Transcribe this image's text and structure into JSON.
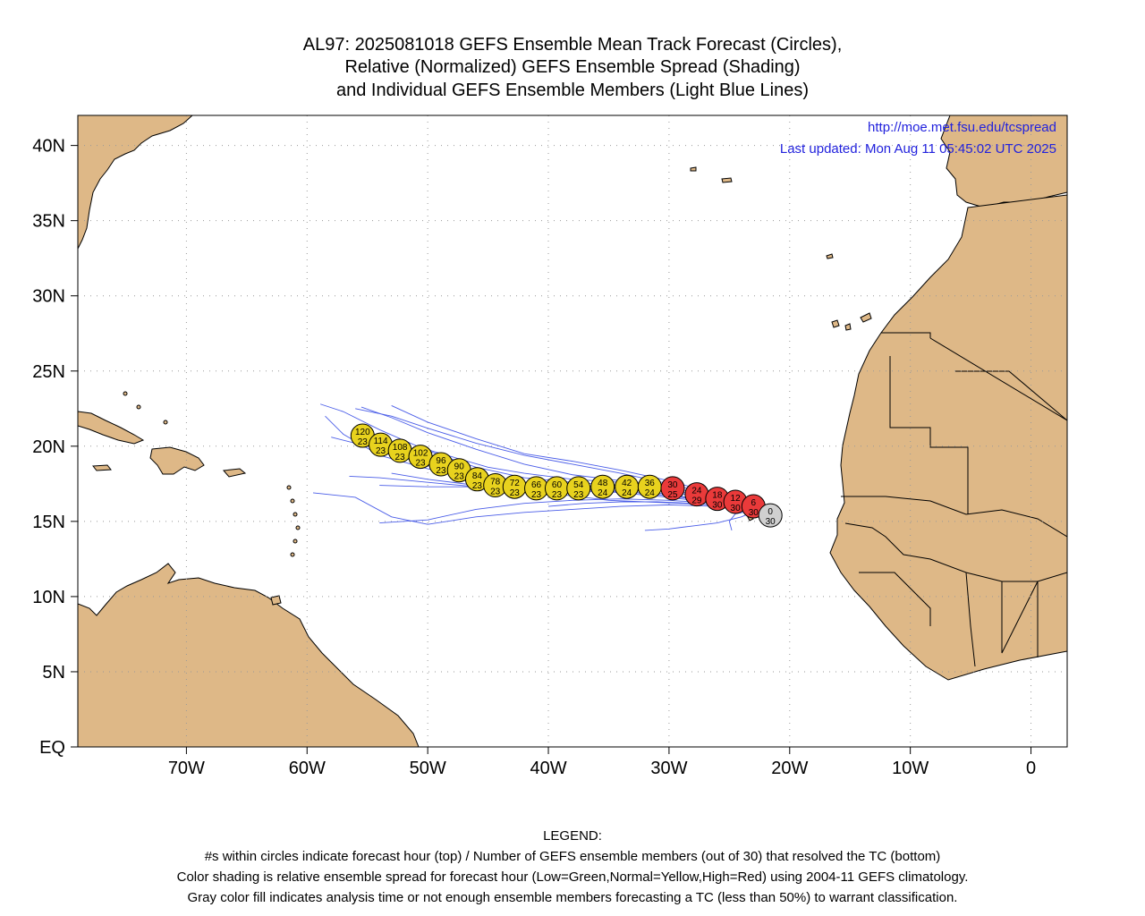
{
  "title": {
    "line1": "AL97: 2025081018 GEFS Ensemble Mean Track Forecast (Circles),",
    "line2": "Relative (Normalized) GEFS Ensemble Spread (Shading)",
    "line3": "and Individual GEFS Ensemble Members (Light Blue Lines)"
  },
  "credit": {
    "url": "http://moe.met.fsu.edu/tcspread",
    "updated": "Last updated: Mon Aug 11 05:45:02 UTC 2025"
  },
  "map": {
    "lon_range": [
      -79,
      3
    ],
    "lat_range": [
      0,
      42
    ],
    "land_color": "#deb887",
    "grid": true,
    "lat_labels": [
      "40N",
      "35N",
      "30N",
      "25N",
      "20N",
      "15N",
      "10N",
      "5N",
      "EQ"
    ],
    "lat_values": [
      40,
      35,
      30,
      25,
      20,
      15,
      10,
      5,
      0
    ],
    "lon_labels": [
      "70W",
      "60W",
      "50W",
      "40W",
      "30W",
      "20W",
      "10W",
      "0"
    ],
    "lon_values": [
      -70,
      -60,
      -50,
      -40,
      -30,
      -20,
      -10,
      0
    ]
  },
  "spread_colors": {
    "yellow": "#e8d21e",
    "red": "#ea3a3a",
    "gray": "#d0d0d0",
    "member_line": "#4a5de8"
  },
  "forecast_points": [
    {
      "hour": "0",
      "members": "30",
      "lon": -21.6,
      "lat": 15.4,
      "color": "gray"
    },
    {
      "hour": "6",
      "members": "30",
      "lon": -23.0,
      "lat": 16.0,
      "color": "red"
    },
    {
      "hour": "12",
      "members": "30",
      "lon": -24.5,
      "lat": 16.3,
      "color": "red"
    },
    {
      "hour": "18",
      "members": "30",
      "lon": -26.0,
      "lat": 16.5,
      "color": "red"
    },
    {
      "hour": "24",
      "members": "29",
      "lon": -27.7,
      "lat": 16.8,
      "color": "red"
    },
    {
      "hour": "30",
      "members": "25",
      "lon": -29.7,
      "lat": 17.2,
      "color": "red"
    },
    {
      "hour": "36",
      "members": "24",
      "lon": -31.6,
      "lat": 17.3,
      "color": "yellow"
    },
    {
      "hour": "42",
      "members": "24",
      "lon": -33.5,
      "lat": 17.3,
      "color": "yellow"
    },
    {
      "hour": "48",
      "members": "24",
      "lon": -35.5,
      "lat": 17.3,
      "color": "yellow"
    },
    {
      "hour": "54",
      "members": "23",
      "lon": -37.5,
      "lat": 17.2,
      "color": "yellow"
    },
    {
      "hour": "60",
      "members": "23",
      "lon": -39.3,
      "lat": 17.2,
      "color": "yellow"
    },
    {
      "hour": "66",
      "members": "23",
      "lon": -41.0,
      "lat": 17.2,
      "color": "yellow"
    },
    {
      "hour": "72",
      "members": "23",
      "lon": -42.8,
      "lat": 17.3,
      "color": "yellow"
    },
    {
      "hour": "78",
      "members": "23",
      "lon": -44.4,
      "lat": 17.4,
      "color": "yellow"
    },
    {
      "hour": "84",
      "members": "23",
      "lon": -45.9,
      "lat": 17.8,
      "color": "yellow"
    },
    {
      "hour": "90",
      "members": "23",
      "lon": -47.4,
      "lat": 18.4,
      "color": "yellow"
    },
    {
      "hour": "96",
      "members": "23",
      "lon": -48.9,
      "lat": 18.8,
      "color": "yellow"
    },
    {
      "hour": "102",
      "members": "23",
      "lon": -50.6,
      "lat": 19.3,
      "color": "yellow"
    },
    {
      "hour": "108",
      "members": "23",
      "lon": -52.3,
      "lat": 19.7,
      "color": "yellow"
    },
    {
      "hour": "114",
      "members": "23",
      "lon": -53.9,
      "lat": 20.1,
      "color": "yellow"
    },
    {
      "hour": "120",
      "members": "23",
      "lon": -55.4,
      "lat": 20.7,
      "color": "yellow"
    }
  ],
  "member_tracks": [
    [
      [
        -22.6,
        15.8
      ],
      [
        -26,
        16.4
      ],
      [
        -30,
        17.0
      ],
      [
        -34,
        17.4
      ],
      [
        -38,
        17.6
      ],
      [
        -42,
        17.9
      ],
      [
        -46,
        18.6
      ],
      [
        -50,
        19.7
      ],
      [
        -54,
        21.1
      ],
      [
        -57,
        22.3
      ],
      [
        -58.9,
        22.8
      ]
    ],
    [
      [
        -22.6,
        15.8
      ],
      [
        -26,
        16.6
      ],
      [
        -30,
        17.3
      ],
      [
        -34,
        17.7
      ],
      [
        -38,
        18.1
      ],
      [
        -42,
        18.8
      ],
      [
        -46,
        19.8
      ],
      [
        -50,
        20.9
      ],
      [
        -53,
        21.9
      ],
      [
        -55.5,
        22.6
      ]
    ],
    [
      [
        -22.6,
        15.8
      ],
      [
        -26,
        16.3
      ],
      [
        -30,
        16.7
      ],
      [
        -34,
        17.0
      ],
      [
        -38,
        17.0
      ],
      [
        -42,
        17.1
      ],
      [
        -46,
        17.3
      ],
      [
        -50,
        17.6
      ],
      [
        -54,
        17.9
      ],
      [
        -56.5,
        18.0
      ]
    ],
    [
      [
        -22.6,
        15.8
      ],
      [
        -26,
        16.2
      ],
      [
        -30,
        16.4
      ],
      [
        -34,
        16.5
      ],
      [
        -38,
        16.4
      ],
      [
        -42,
        16.2
      ],
      [
        -46,
        15.8
      ],
      [
        -50,
        15.1
      ],
      [
        -54,
        14.9
      ]
    ],
    [
      [
        -22.6,
        15.8
      ],
      [
        -26,
        16.0
      ],
      [
        -30,
        16.1
      ],
      [
        -34,
        16.0
      ],
      [
        -38,
        15.8
      ],
      [
        -42,
        15.6
      ],
      [
        -46,
        15.3
      ],
      [
        -50,
        14.8
      ],
      [
        -53,
        15.3
      ],
      [
        -56,
        16.6
      ],
      [
        -59.5,
        16.9
      ]
    ],
    [
      [
        -22.6,
        15.8
      ],
      [
        -25,
        16.2
      ],
      [
        -28,
        16.5
      ],
      [
        -31,
        16.8
      ],
      [
        -34,
        17.0
      ],
      [
        -38,
        17.2
      ],
      [
        -42,
        17.3
      ],
      [
        -46,
        17.3
      ],
      [
        -50,
        17.3
      ],
      [
        -54,
        17.4
      ]
    ],
    [
      [
        -22.6,
        15.8
      ],
      [
        -26,
        16.7
      ],
      [
        -30,
        17.5
      ],
      [
        -34,
        18.2
      ],
      [
        -38,
        18.8
      ],
      [
        -42,
        19.4
      ],
      [
        -46,
        20.2
      ],
      [
        -50,
        21.2
      ],
      [
        -53,
        22.0
      ],
      [
        -56,
        22.5
      ]
    ],
    [
      [
        -22.6,
        15.8
      ],
      [
        -26,
        16.5
      ],
      [
        -30,
        17.1
      ],
      [
        -34,
        17.6
      ],
      [
        -38,
        17.8
      ],
      [
        -42,
        18.2
      ],
      [
        -45,
        18.6
      ],
      [
        -48,
        19.3
      ],
      [
        -51,
        20.0
      ]
    ],
    [
      [
        -22.6,
        15.8
      ],
      [
        -26,
        16.1
      ],
      [
        -29,
        16.2
      ],
      [
        -32,
        16.3
      ],
      [
        -35,
        16.4
      ],
      [
        -38,
        16.7
      ],
      [
        -42,
        17.0
      ],
      [
        -46,
        17.4
      ],
      [
        -50,
        17.8
      ],
      [
        -53,
        18.2
      ]
    ],
    [
      [
        -22.6,
        15.8
      ],
      [
        -26,
        16.3
      ],
      [
        -30,
        16.8
      ],
      [
        -34,
        17.2
      ],
      [
        -38,
        17.4
      ],
      [
        -42,
        17.6
      ],
      [
        -46,
        17.9
      ],
      [
        -50,
        18.5
      ],
      [
        -54,
        19.4
      ],
      [
        -57,
        20.8
      ],
      [
        -58.5,
        22.0
      ]
    ],
    [
      [
        -22.6,
        15.8
      ],
      [
        -25,
        16.0
      ],
      [
        -28,
        16.2
      ],
      [
        -31,
        16.3
      ],
      [
        -34,
        16.3
      ],
      [
        -37,
        16.2
      ],
      [
        -40,
        16.0
      ]
    ],
    [
      [
        -22.6,
        15.8
      ],
      [
        -24,
        15.3
      ],
      [
        -26,
        14.9
      ],
      [
        -28,
        14.7
      ],
      [
        -30,
        14.5
      ],
      [
        -32,
        14.4
      ]
    ],
    [
      [
        -22.6,
        15.8
      ],
      [
        -26,
        16.8
      ],
      [
        -30,
        17.7
      ],
      [
        -34,
        18.4
      ],
      [
        -38,
        19.0
      ],
      [
        -42,
        19.5
      ],
      [
        -46,
        20.5
      ],
      [
        -50,
        21.6
      ],
      [
        -53,
        22.7
      ]
    ],
    [
      [
        -22.6,
        15.8
      ],
      [
        -26,
        16.2
      ],
      [
        -30,
        16.6
      ],
      [
        -34,
        16.9
      ],
      [
        -38,
        17.2
      ],
      [
        -42,
        17.5
      ],
      [
        -46,
        17.9
      ],
      [
        -50,
        18.7
      ],
      [
        -54,
        19.8
      ],
      [
        -58,
        20.6
      ]
    ],
    [
      [
        -22.6,
        15.8
      ],
      [
        -24.5,
        15.5
      ],
      [
        -25,
        15.0
      ],
      [
        -24.8,
        14.4
      ]
    ]
  ],
  "legend": {
    "heading": "LEGEND:",
    "line1": "#s within circles indicate forecast hour (top) / Number of GEFS ensemble members (out of 30) that resolved the TC (bottom)",
    "line2": "Color shading is relative ensemble spread for forecast hour (Low=Green,Normal=Yellow,High=Red) using 2004-11 GEFS climatology.",
    "line3": "Gray color fill indicates analysis time or not enough ensemble members forecasting a TC (less than 50%) to warrant classification."
  }
}
